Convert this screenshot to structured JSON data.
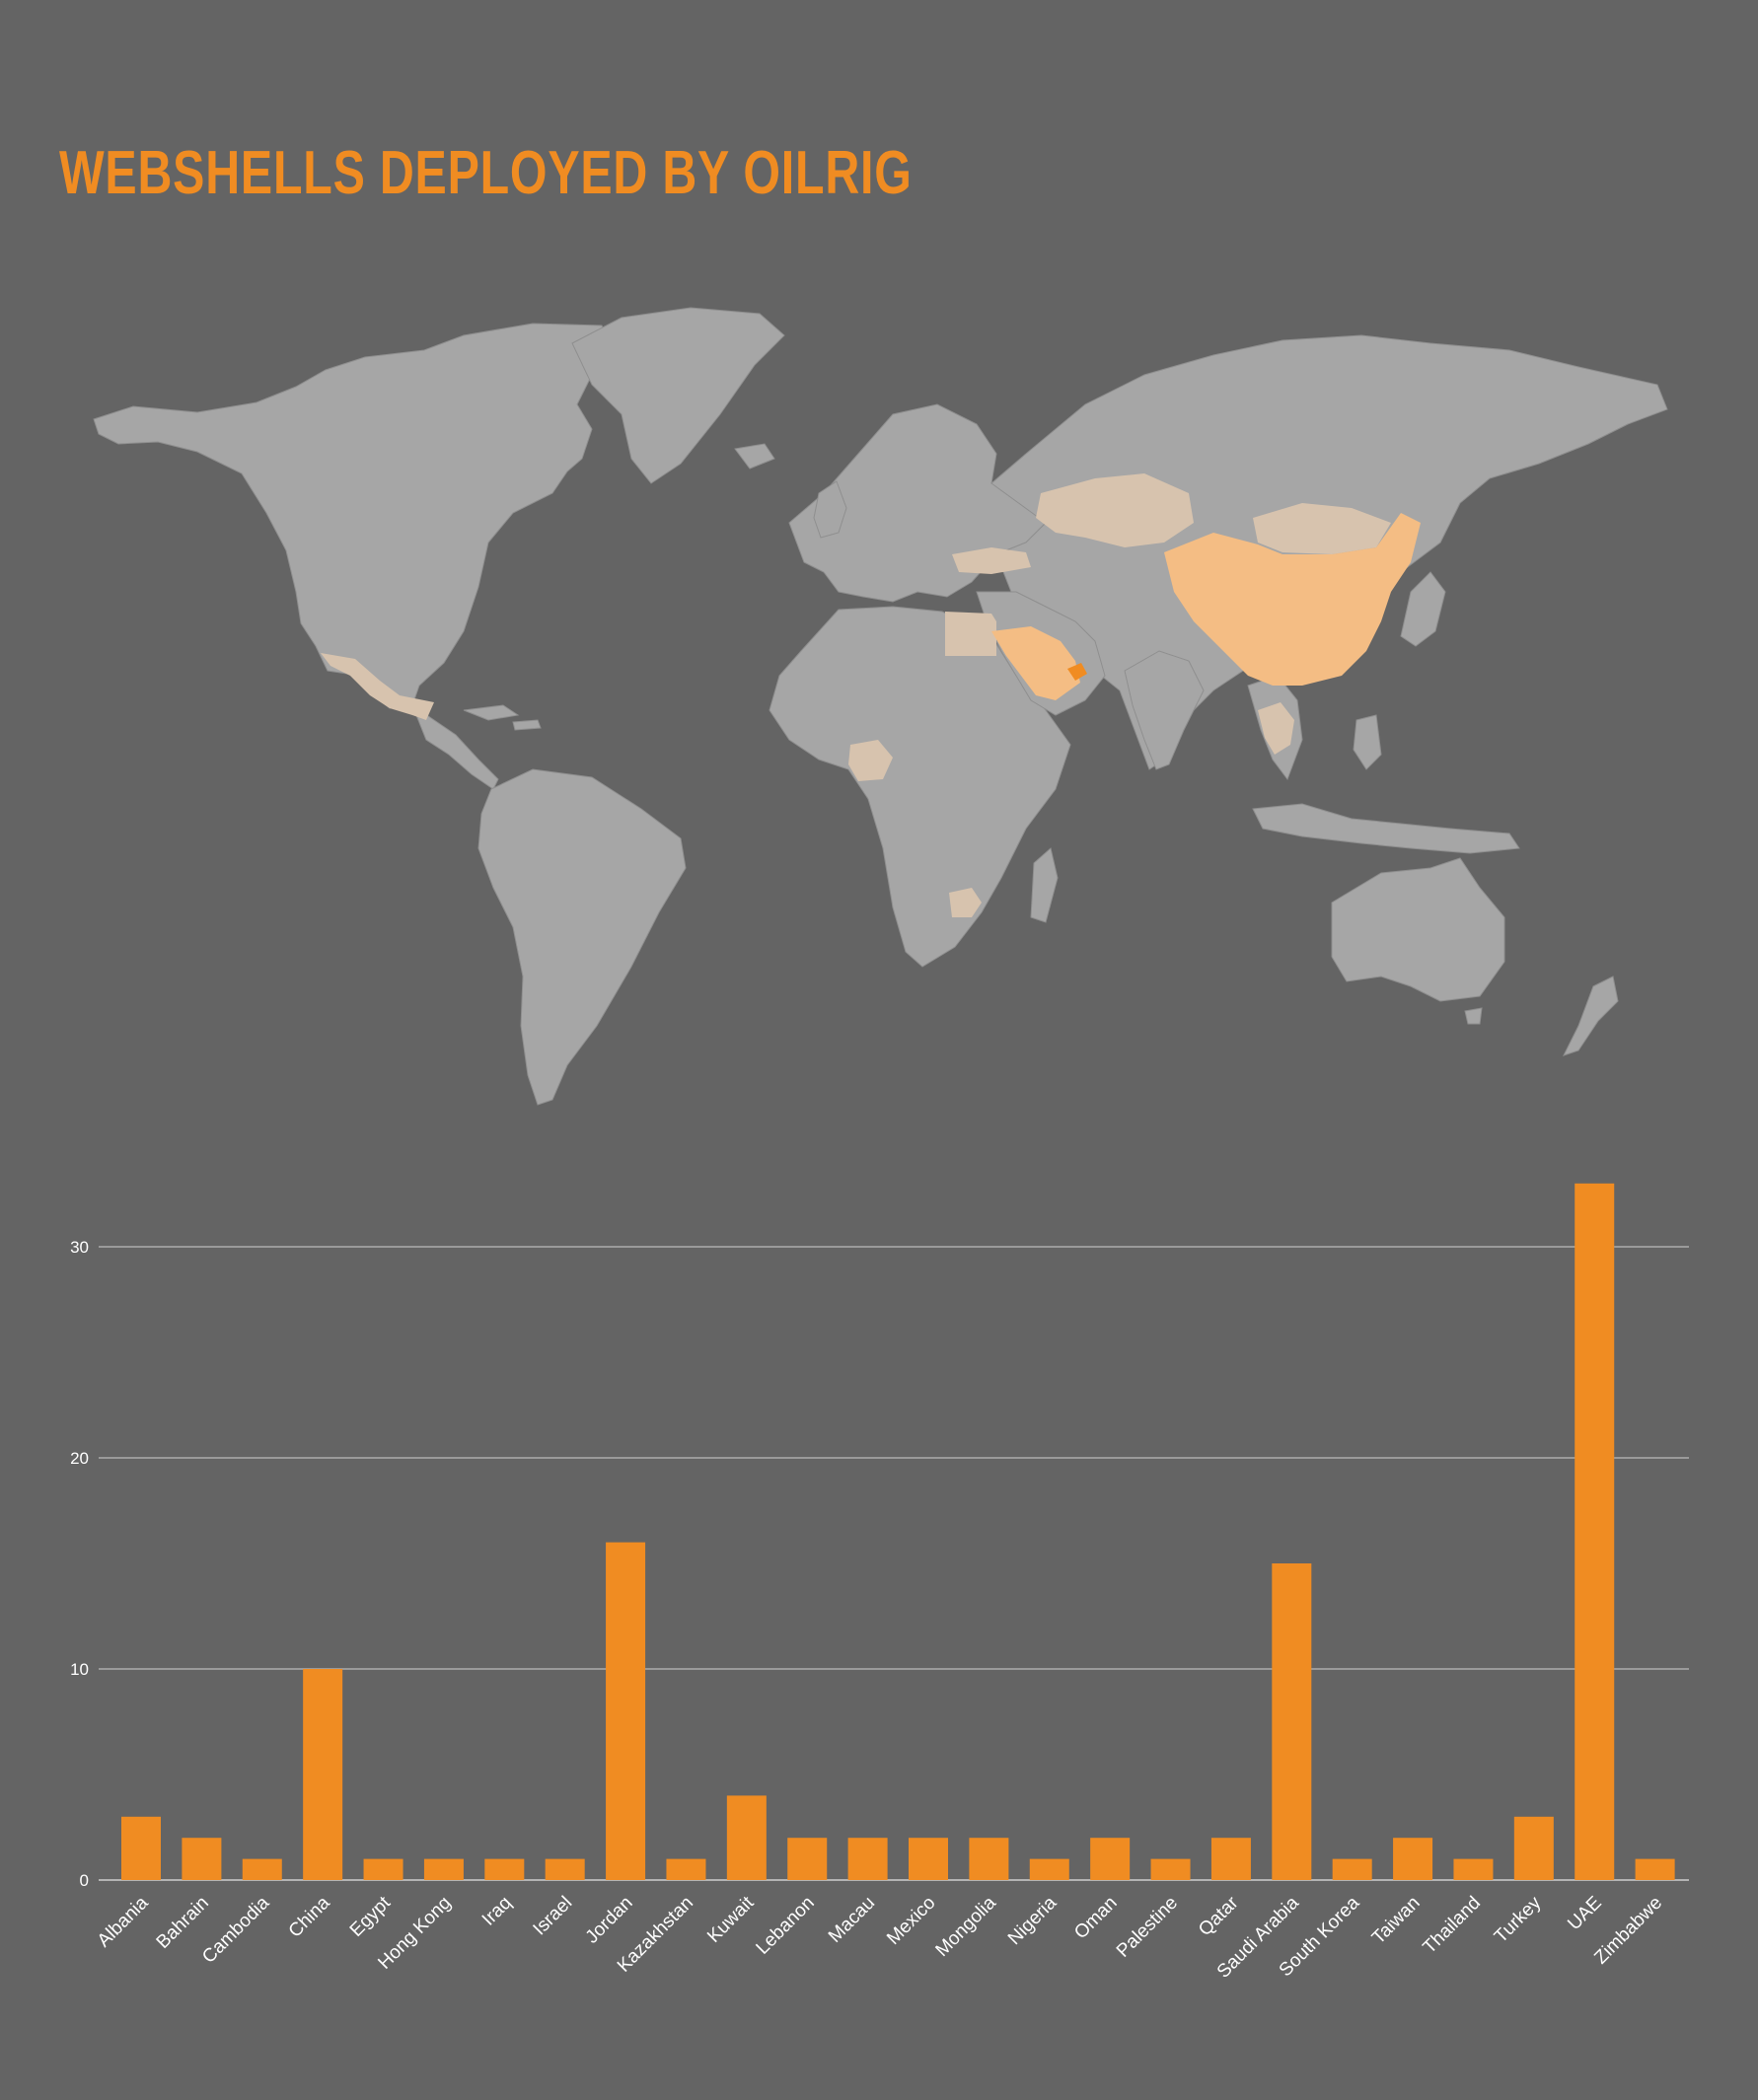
{
  "title": "WEBSHELLS DEPLOYED BY OILRIG",
  "colors": {
    "background": "#646464",
    "accent": "#f08c22",
    "land": "#a6a6a6",
    "highlight_light": "#d7c3ae",
    "highlight_mid": "#f4bd84",
    "highlight_strong": "#f08c22",
    "grid": "#cfcfcf"
  },
  "map": {
    "type": "choropleth-world-map",
    "highlighted_regions": [
      "Mexico",
      "Egypt",
      "Nigeria",
      "Zimbabwe",
      "Kazakhstan",
      "Mongolia",
      "Thailand",
      "Cambodia",
      "Turkey",
      "China",
      "Saudi Arabia",
      "UAE"
    ]
  },
  "chart_data": {
    "type": "bar",
    "categories": [
      "Albania",
      "Bahrain",
      "Cambodia",
      "China",
      "Egypt",
      "Hong Kong",
      "Iraq",
      "Israel",
      "Jordan",
      "Kazakhstan",
      "Kuwait",
      "Lebanon",
      "Macau",
      "Mexico",
      "Mongolia",
      "Nigeria",
      "Oman",
      "Palestine",
      "Qatar",
      "Saudi Arabia",
      "South Korea",
      "Taiwan",
      "Thailand",
      "Turkey",
      "UAE",
      "Zimbabwe"
    ],
    "values": [
      3,
      2,
      1,
      10,
      1,
      1,
      1,
      1,
      16,
      1,
      4,
      2,
      2,
      2,
      2,
      1,
      2,
      1,
      2,
      15,
      1,
      2,
      1,
      3,
      33,
      1
    ],
    "yticks": [
      "0",
      "10",
      "20",
      "30"
    ],
    "ylim": [
      0,
      33
    ],
    "grid": true,
    "legend": "none"
  }
}
